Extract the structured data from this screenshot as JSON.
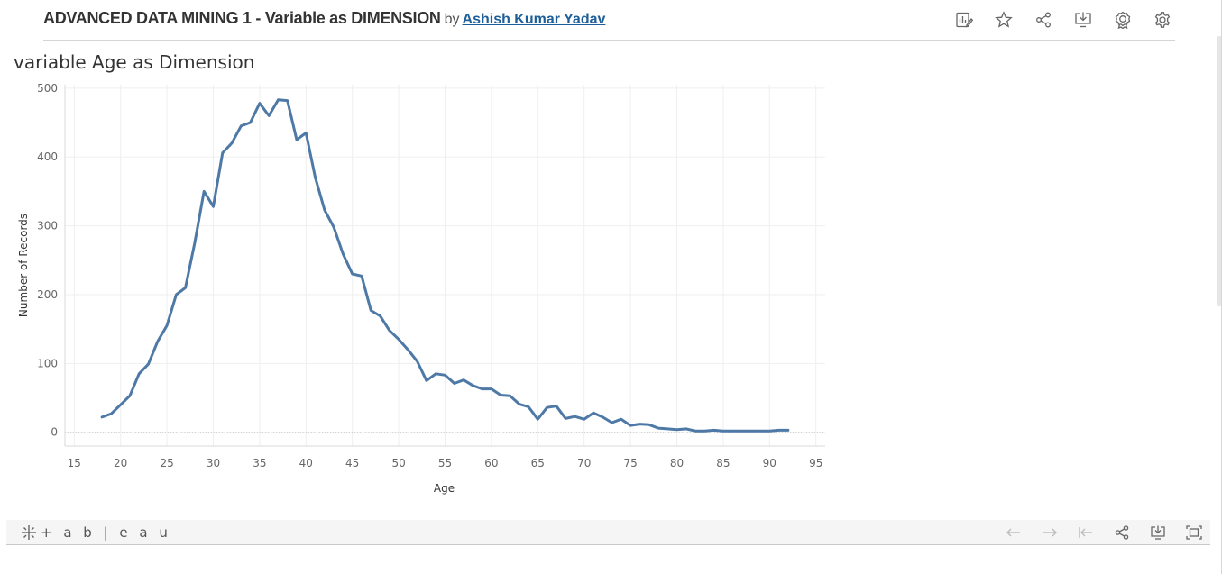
{
  "header": {
    "viz_title": "ADVANCED DATA MINING 1 - Variable as DIMENSION",
    "by": "by",
    "author": "Ashish Kumar Yadav"
  },
  "toolbar": {
    "icons": [
      "edit-data-icon",
      "star-icon",
      "share-icon",
      "download-icon",
      "badge-icon",
      "gear-icon"
    ]
  },
  "sheet": {
    "title": "variable Age as Dimension"
  },
  "chart_data": {
    "type": "line",
    "title": "variable Age as Dimension",
    "xlabel": "Age",
    "ylabel": "Number of Records",
    "xlim": [
      14,
      96
    ],
    "ylim": [
      -20,
      505
    ],
    "x_ticks": [
      15,
      20,
      25,
      30,
      35,
      40,
      45,
      50,
      55,
      60,
      65,
      70,
      75,
      80,
      85,
      90,
      95
    ],
    "y_ticks": [
      0,
      100,
      200,
      300,
      400,
      500
    ],
    "grid": true,
    "line_color": "#4e79a7",
    "series": [
      {
        "x": [
          18,
          19,
          20,
          21,
          22,
          23,
          24,
          25,
          26,
          27,
          28,
          29,
          30,
          31,
          32,
          33,
          34,
          35,
          36,
          37,
          38,
          39,
          40,
          41,
          42,
          43,
          44,
          45,
          46,
          47,
          48,
          49,
          50,
          51,
          52,
          53,
          54,
          55,
          56,
          57,
          58,
          59,
          60,
          61,
          62,
          63,
          64,
          65,
          66,
          67,
          68,
          69,
          70,
          71,
          72,
          73,
          74,
          75,
          76,
          77,
          78,
          79,
          80,
          81,
          82,
          83,
          84,
          85,
          86,
          87,
          88,
          89,
          90,
          91,
          92
        ],
        "values": [
          22,
          27,
          40,
          53,
          85,
          99,
          132,
          155,
          200,
          210,
          275,
          350,
          328,
          406,
          420,
          445,
          450,
          478,
          460,
          483,
          482,
          425,
          435,
          370,
          323,
          298,
          259,
          230,
          227,
          177,
          169,
          148,
          135,
          120,
          103,
          75,
          85,
          83,
          71,
          76,
          68,
          63,
          63,
          54,
          53,
          41,
          37,
          19,
          36,
          38,
          20,
          23,
          19,
          28,
          22,
          14,
          19,
          10,
          12,
          11,
          6,
          5,
          4,
          5,
          2,
          2,
          3,
          2,
          2,
          2,
          2,
          2,
          2,
          3,
          3
        ]
      }
    ]
  },
  "footer": {
    "brand": "+ a b | e a u",
    "icons": [
      "undo-icon",
      "redo-icon",
      "revert-icon",
      "share-icon",
      "download-icon",
      "fullscreen-icon"
    ]
  }
}
